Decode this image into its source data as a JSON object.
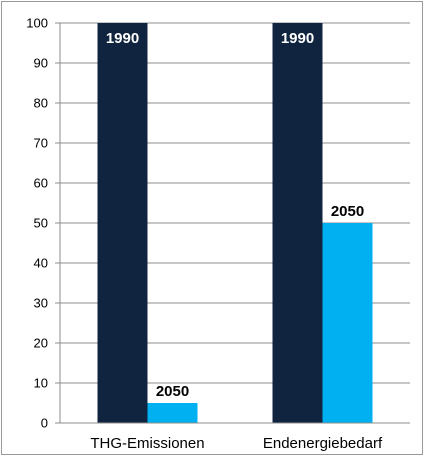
{
  "chart_data": {
    "type": "bar",
    "title": "",
    "xlabel": "",
    "ylabel": "",
    "ylim": [
      0,
      100
    ],
    "yticks": [
      0,
      10,
      20,
      30,
      40,
      50,
      60,
      70,
      80,
      90,
      100
    ],
    "grid": true,
    "categories": [
      "THG-Emissionen",
      "Endenergiebedarf"
    ],
    "series": [
      {
        "label": "1990",
        "color": "#10243f",
        "label_color": "#ffffff",
        "label_position": "inside-top",
        "values": [
          100,
          100
        ]
      },
      {
        "label": "2050",
        "color": "#00b0f0",
        "label_color": "#000000",
        "label_position": "above",
        "values": [
          5,
          50
        ]
      }
    ]
  }
}
